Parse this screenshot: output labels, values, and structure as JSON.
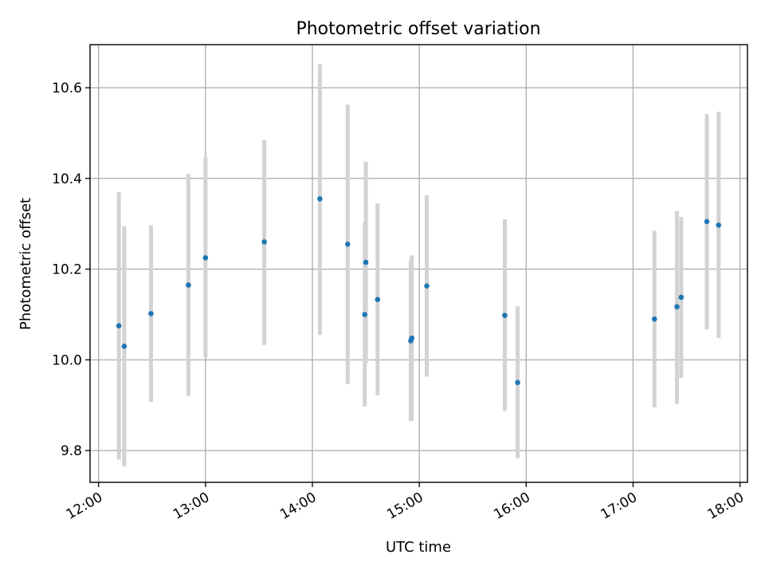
{
  "chart_data": {
    "type": "scatter",
    "title": "Photometric offset variation",
    "xlabel": "UTC time",
    "ylabel": "Photometric offset",
    "x_unit": "hour of day (UTC)",
    "xlim": [
      11.92,
      18.07
    ],
    "ylim": [
      9.73,
      10.695
    ],
    "x_ticks": [
      {
        "value": 12,
        "label": "12:00"
      },
      {
        "value": 13,
        "label": "13:00"
      },
      {
        "value": 14,
        "label": "14:00"
      },
      {
        "value": 15,
        "label": "15:00"
      },
      {
        "value": 16,
        "label": "16:00"
      },
      {
        "value": 17,
        "label": "17:00"
      },
      {
        "value": 18,
        "label": "18:00"
      }
    ],
    "y_ticks": [
      {
        "value": 9.8,
        "label": "9.8"
      },
      {
        "value": 10.0,
        "label": "10.0"
      },
      {
        "value": 10.2,
        "label": "10.2"
      },
      {
        "value": 10.4,
        "label": "10.4"
      },
      {
        "value": 10.6,
        "label": "10.6"
      }
    ],
    "grid": true,
    "marker_color": "#1f77b4",
    "errorbar_color": "#d3d3d3",
    "points": [
      {
        "x": 12.19,
        "y": 10.075,
        "err_low": 9.78,
        "err_high": 10.37
      },
      {
        "x": 12.24,
        "y": 10.03,
        "err_low": 9.765,
        "err_high": 10.295
      },
      {
        "x": 12.49,
        "y": 10.102,
        "err_low": 9.907,
        "err_high": 10.297
      },
      {
        "x": 12.84,
        "y": 10.165,
        "err_low": 9.92,
        "err_high": 10.41
      },
      {
        "x": 13.0,
        "y": 10.225,
        "err_low": 10.005,
        "err_high": 10.448
      },
      {
        "x": 13.55,
        "y": 10.26,
        "err_low": 10.033,
        "err_high": 10.485
      },
      {
        "x": 14.07,
        "y": 10.355,
        "err_low": 10.055,
        "err_high": 10.652
      },
      {
        "x": 14.33,
        "y": 10.255,
        "err_low": 9.947,
        "err_high": 10.563
      },
      {
        "x": 14.49,
        "y": 10.1,
        "err_low": 9.897,
        "err_high": 10.303
      },
      {
        "x": 14.5,
        "y": 10.215,
        "err_low": 9.993,
        "err_high": 10.437
      },
      {
        "x": 14.61,
        "y": 10.133,
        "err_low": 9.922,
        "err_high": 10.345
      },
      {
        "x": 14.92,
        "y": 10.042,
        "err_low": 9.865,
        "err_high": 10.22
      },
      {
        "x": 14.93,
        "y": 10.048,
        "err_low": 9.867,
        "err_high": 10.23
      },
      {
        "x": 15.07,
        "y": 10.163,
        "err_low": 9.963,
        "err_high": 10.363
      },
      {
        "x": 15.8,
        "y": 10.098,
        "err_low": 9.887,
        "err_high": 10.31
      },
      {
        "x": 15.92,
        "y": 9.95,
        "err_low": 9.783,
        "err_high": 10.118
      },
      {
        "x": 17.2,
        "y": 10.09,
        "err_low": 9.895,
        "err_high": 10.285
      },
      {
        "x": 17.41,
        "y": 10.117,
        "err_low": 9.902,
        "err_high": 10.328
      },
      {
        "x": 17.45,
        "y": 10.138,
        "err_low": 9.96,
        "err_high": 10.315
      },
      {
        "x": 17.69,
        "y": 10.305,
        "err_low": 10.067,
        "err_high": 10.542
      },
      {
        "x": 17.8,
        "y": 10.297,
        "err_low": 10.048,
        "err_high": 10.547
      }
    ]
  }
}
